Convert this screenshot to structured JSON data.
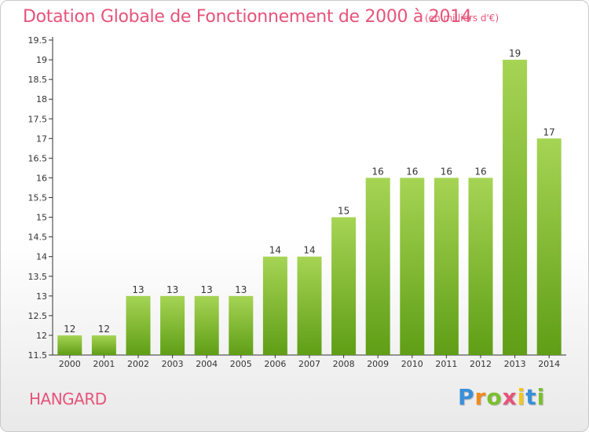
{
  "header": {
    "title": "Dotation Globale de Fonctionnement de 2000 à 2014",
    "subtitle": "(en milliers d'€)"
  },
  "commune": "HANGARD",
  "logo": {
    "text": "Proxiti",
    "colors": [
      "#3a8fd9",
      "#f08a1c",
      "#7bbf2e",
      "#e6537a",
      "#f3c51b",
      "#3a8fd9",
      "#7bbf2e"
    ]
  },
  "colors": {
    "title": "#e6537a",
    "bar_light": "#a6d454",
    "bar_dark": "#5f9e16",
    "axis": "#333333",
    "grid": "#cccccc"
  },
  "chart_data": {
    "type": "bar",
    "categories": [
      "2000",
      "2001",
      "2002",
      "2003",
      "2004",
      "2005",
      "2006",
      "2007",
      "2008",
      "2009",
      "2010",
      "2011",
      "2012",
      "2013",
      "2014"
    ],
    "values": [
      12,
      12,
      13,
      13,
      13,
      13,
      14,
      14,
      15,
      16,
      16,
      16,
      16,
      19,
      17
    ],
    "labels": [
      "12",
      "12",
      "13",
      "13",
      "13",
      "13",
      "14",
      "14",
      "15",
      "16",
      "16",
      "16",
      "16",
      "19",
      "17"
    ],
    "ylim": [
      11.5,
      19.5
    ],
    "yticks": [
      "11.5",
      "12",
      "12.5",
      "13",
      "13.5",
      "14",
      "14.5",
      "15",
      "15.5",
      "16",
      "16.5",
      "17",
      "17.5",
      "18",
      "18.5",
      "19",
      "19.5"
    ],
    "xlabel": "",
    "ylabel": "",
    "grid": false,
    "legend": "none"
  }
}
